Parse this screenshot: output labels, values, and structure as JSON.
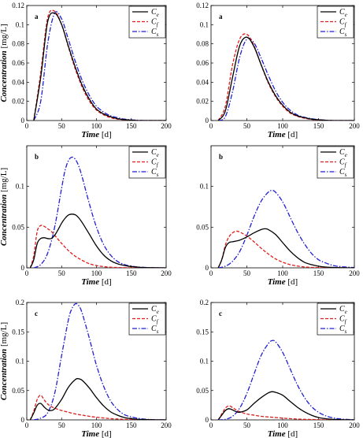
{
  "legend_labels": [
    {
      "main": "C",
      "sub": "e"
    },
    {
      "main": "C",
      "sub": "f"
    },
    {
      "main": "C",
      "sub": "s"
    }
  ],
  "colors": {
    "Ce": "#000000",
    "Cf": "#e01b1b",
    "Cs": "#1f1fd6"
  },
  "chart_data": [
    {
      "type": "line",
      "panel_label": "a",
      "xlabel": {
        "italic": "Time",
        "unit": " [d]"
      },
      "ylabel": {
        "italic": "Concentration",
        "unit": " [mg/L]"
      },
      "xlim": [
        0,
        200
      ],
      "ylim": [
        0,
        0.12
      ],
      "xticks": [
        0,
        50,
        100,
        150,
        200
      ],
      "yticks": [
        0,
        0.02,
        0.04,
        0.06,
        0.08,
        0.1,
        0.12
      ],
      "legend_position": "top-right",
      "series": [
        {
          "name": "Ce",
          "x": [
            10,
            20,
            30,
            40,
            50,
            60,
            70,
            80,
            90,
            100,
            110,
            120,
            130,
            140,
            150,
            160,
            170,
            180,
            190,
            200
          ],
          "y": [
            0,
            0.045,
            0.103,
            0.112,
            0.1,
            0.077,
            0.055,
            0.036,
            0.022,
            0.012,
            0.007,
            0.004,
            0.002,
            0.001,
            0.0005,
            0,
            0,
            0,
            0,
            0
          ]
        },
        {
          "name": "Cf",
          "x": [
            10,
            20,
            30,
            40,
            50,
            60,
            70,
            80,
            90,
            100,
            110,
            120,
            130,
            140,
            150,
            160,
            170,
            180,
            190,
            200
          ],
          "y": [
            0,
            0.05,
            0.107,
            0.114,
            0.1,
            0.076,
            0.053,
            0.034,
            0.02,
            0.011,
            0.006,
            0.003,
            0.0015,
            0.0008,
            0.0003,
            0,
            0,
            0,
            0,
            0
          ]
        },
        {
          "name": "Cs",
          "x": [
            10,
            20,
            30,
            40,
            50,
            60,
            70,
            80,
            90,
            100,
            110,
            120,
            130,
            140,
            150,
            160,
            170,
            180,
            190,
            200
          ],
          "y": [
            0,
            0.02,
            0.08,
            0.112,
            0.106,
            0.084,
            0.061,
            0.041,
            0.026,
            0.015,
            0.009,
            0.005,
            0.003,
            0.0015,
            0.0007,
            0.0003,
            0,
            0,
            0,
            0
          ]
        }
      ]
    },
    {
      "type": "line",
      "panel_label": "a",
      "xlabel": {
        "italic": "Time",
        "unit": " [d]"
      },
      "ylabel": {
        "italic": "",
        "unit": ""
      },
      "xlim": [
        0,
        200
      ],
      "ylim": [
        0,
        0.12
      ],
      "xticks": [
        0,
        50,
        100,
        150,
        200
      ],
      "yticks": [
        0,
        0.02,
        0.04,
        0.06,
        0.08,
        0.1,
        0.12
      ],
      "legend_position": "top-right",
      "series": [
        {
          "name": "Ce",
          "x": [
            10,
            20,
            30,
            40,
            50,
            60,
            70,
            80,
            90,
            100,
            110,
            120,
            130,
            140,
            150,
            160,
            170,
            180,
            190,
            200
          ],
          "y": [
            0,
            0.01,
            0.045,
            0.078,
            0.087,
            0.077,
            0.058,
            0.04,
            0.026,
            0.016,
            0.009,
            0.005,
            0.003,
            0.0015,
            0.0008,
            0.0003,
            0,
            0,
            0,
            0
          ]
        },
        {
          "name": "Cf",
          "x": [
            10,
            20,
            30,
            40,
            50,
            60,
            70,
            80,
            90,
            100,
            110,
            120,
            130,
            140,
            150,
            160,
            170,
            180,
            190,
            200
          ],
          "y": [
            0,
            0.015,
            0.058,
            0.085,
            0.09,
            0.078,
            0.058,
            0.039,
            0.025,
            0.015,
            0.008,
            0.0045,
            0.0025,
            0.0012,
            0.0006,
            0.0002,
            0,
            0,
            0,
            0
          ]
        },
        {
          "name": "Cs",
          "x": [
            10,
            20,
            30,
            40,
            50,
            60,
            70,
            80,
            90,
            100,
            110,
            120,
            130,
            140,
            150,
            160,
            170,
            180,
            190,
            200
          ],
          "y": [
            0,
            0.004,
            0.03,
            0.066,
            0.085,
            0.081,
            0.065,
            0.047,
            0.031,
            0.019,
            0.011,
            0.006,
            0.0035,
            0.002,
            0.001,
            0.0004,
            0,
            0,
            0,
            0
          ]
        }
      ]
    },
    {
      "type": "line",
      "panel_label": "b",
      "xlabel": {
        "italic": "Time",
        "unit": " [d]"
      },
      "ylabel": {
        "italic": "Concentration",
        "unit": " [mg/L]"
      },
      "xlim": [
        0,
        200
      ],
      "ylim": [
        0,
        0.15
      ],
      "xticks": [
        0,
        50,
        100,
        150,
        200
      ],
      "yticks": [
        0,
        0.05,
        0.1
      ],
      "legend_position": "top-right",
      "series": [
        {
          "name": "Ce",
          "x": [
            5,
            10,
            15,
            20,
            25,
            30,
            35,
            40,
            45,
            50,
            55,
            60,
            65,
            70,
            75,
            80,
            90,
            100,
            110,
            120,
            130,
            140,
            150,
            170,
            200
          ],
          "y": [
            0,
            0.01,
            0.03,
            0.036,
            0.037,
            0.036,
            0.036,
            0.04,
            0.047,
            0.055,
            0.061,
            0.065,
            0.066,
            0.065,
            0.061,
            0.055,
            0.041,
            0.027,
            0.016,
            0.009,
            0.005,
            0.003,
            0.0015,
            0.0003,
            0
          ]
        },
        {
          "name": "Cf",
          "x": [
            5,
            10,
            15,
            20,
            25,
            30,
            35,
            40,
            45,
            50,
            60,
            70,
            80,
            90,
            100,
            110,
            120,
            130,
            140,
            150,
            170,
            200
          ],
          "y": [
            0,
            0.015,
            0.045,
            0.052,
            0.051,
            0.048,
            0.045,
            0.04,
            0.035,
            0.03,
            0.021,
            0.014,
            0.009,
            0.005,
            0.0028,
            0.0015,
            0.0008,
            0.0004,
            0.0002,
            0.0001,
            0,
            0
          ]
        },
        {
          "name": "Cs",
          "x": [
            10,
            20,
            30,
            40,
            50,
            55,
            60,
            65,
            70,
            75,
            80,
            90,
            100,
            110,
            120,
            130,
            140,
            150,
            160,
            180,
            200
          ],
          "y": [
            0,
            0.004,
            0.018,
            0.05,
            0.098,
            0.12,
            0.132,
            0.136,
            0.133,
            0.124,
            0.11,
            0.078,
            0.05,
            0.029,
            0.016,
            0.008,
            0.004,
            0.002,
            0.001,
            0.0002,
            0
          ]
        }
      ]
    },
    {
      "type": "line",
      "panel_label": "b",
      "xlabel": {
        "italic": "Time",
        "unit": " [d]"
      },
      "ylabel": {
        "italic": "",
        "unit": ""
      },
      "xlim": [
        0,
        200
      ],
      "ylim": [
        0,
        0.15
      ],
      "xticks": [
        0,
        50,
        100,
        150,
        200
      ],
      "yticks": [
        0,
        0.05,
        0.1
      ],
      "legend_position": "top-right",
      "series": [
        {
          "name": "Ce",
          "x": [
            10,
            15,
            20,
            25,
            30,
            40,
            50,
            60,
            70,
            75,
            80,
            90,
            100,
            110,
            120,
            130,
            140,
            150,
            160,
            180,
            200
          ],
          "y": [
            0,
            0.01,
            0.025,
            0.031,
            0.032,
            0.034,
            0.038,
            0.043,
            0.047,
            0.048,
            0.047,
            0.041,
            0.031,
            0.021,
            0.013,
            0.007,
            0.004,
            0.002,
            0.001,
            0.0002,
            0
          ]
        },
        {
          "name": "Cf",
          "x": [
            10,
            15,
            20,
            25,
            30,
            35,
            40,
            50,
            60,
            70,
            80,
            90,
            100,
            110,
            120,
            130,
            140,
            150,
            160,
            180,
            200
          ],
          "y": [
            0,
            0.01,
            0.028,
            0.038,
            0.043,
            0.045,
            0.044,
            0.039,
            0.032,
            0.024,
            0.017,
            0.011,
            0.007,
            0.004,
            0.0023,
            0.0012,
            0.0006,
            0.0003,
            0.0001,
            0,
            0
          ]
        },
        {
          "name": "Cs",
          "x": [
            10,
            20,
            30,
            40,
            50,
            60,
            70,
            80,
            85,
            90,
            100,
            110,
            120,
            130,
            140,
            150,
            160,
            170,
            180,
            200
          ],
          "y": [
            0,
            0.002,
            0.008,
            0.02,
            0.04,
            0.063,
            0.082,
            0.093,
            0.095,
            0.093,
            0.081,
            0.063,
            0.045,
            0.03,
            0.018,
            0.01,
            0.006,
            0.003,
            0.0015,
            0.0003
          ]
        }
      ]
    },
    {
      "type": "line",
      "panel_label": "c",
      "xlabel": {
        "italic": "Time",
        "unit": " [d]"
      },
      "ylabel": {
        "italic": "Concentration",
        "unit": " [mg/L]"
      },
      "xlim": [
        0,
        200
      ],
      "ylim": [
        0,
        0.2
      ],
      "xticks": [
        0,
        50,
        100,
        150,
        200
      ],
      "yticks": [
        0,
        0.05,
        0.1,
        0.15,
        0.2
      ],
      "legend_position": "top-right",
      "series": [
        {
          "name": "Ce",
          "x": [
            5,
            10,
            15,
            20,
            25,
            30,
            35,
            40,
            50,
            60,
            70,
            75,
            80,
            90,
            100,
            110,
            120,
            130,
            140,
            150,
            160,
            180,
            200
          ],
          "y": [
            0,
            0.012,
            0.025,
            0.028,
            0.022,
            0.017,
            0.016,
            0.019,
            0.035,
            0.056,
            0.069,
            0.07,
            0.067,
            0.054,
            0.038,
            0.024,
            0.014,
            0.008,
            0.004,
            0.002,
            0.001,
            0.0002,
            0
          ]
        },
        {
          "name": "Cf",
          "x": [
            5,
            10,
            15,
            20,
            25,
            30,
            35,
            40,
            50,
            60,
            70,
            80,
            90,
            100,
            110,
            120,
            130,
            140,
            150,
            170,
            200
          ],
          "y": [
            0,
            0.015,
            0.035,
            0.042,
            0.034,
            0.027,
            0.023,
            0.02,
            0.016,
            0.013,
            0.01,
            0.008,
            0.006,
            0.0045,
            0.0032,
            0.0022,
            0.0015,
            0.001,
            0.0006,
            0.0002,
            0
          ]
        },
        {
          "name": "Cs",
          "x": [
            10,
            20,
            30,
            40,
            50,
            60,
            65,
            70,
            75,
            80,
            90,
            100,
            110,
            120,
            130,
            140,
            150,
            160,
            170,
            180,
            200
          ],
          "y": [
            0,
            0.003,
            0.012,
            0.045,
            0.11,
            0.172,
            0.19,
            0.198,
            0.194,
            0.18,
            0.138,
            0.093,
            0.058,
            0.033,
            0.018,
            0.009,
            0.005,
            0.0025,
            0.0012,
            0.0005,
            0
          ]
        }
      ]
    },
    {
      "type": "line",
      "panel_label": "c",
      "xlabel": {
        "italic": "Time",
        "unit": " [d]"
      },
      "ylabel": {
        "italic": "",
        "unit": ""
      },
      "xlim": [
        0,
        200
      ],
      "ylim": [
        0,
        0.2
      ],
      "xticks": [
        0,
        50,
        100,
        150,
        200
      ],
      "yticks": [
        0,
        0.05,
        0.1,
        0.15,
        0.2
      ],
      "legend_position": "top-right",
      "series": [
        {
          "name": "Ce",
          "x": [
            10,
            15,
            20,
            25,
            30,
            35,
            40,
            50,
            60,
            70,
            80,
            85,
            90,
            100,
            110,
            120,
            130,
            140,
            150,
            160,
            170,
            180,
            200
          ],
          "y": [
            0,
            0.008,
            0.016,
            0.019,
            0.017,
            0.014,
            0.013,
            0.017,
            0.028,
            0.038,
            0.046,
            0.048,
            0.047,
            0.042,
            0.032,
            0.022,
            0.014,
            0.008,
            0.004,
            0.002,
            0.001,
            0.0005,
            0
          ]
        },
        {
          "name": "Cf",
          "x": [
            10,
            15,
            20,
            25,
            30,
            35,
            40,
            50,
            60,
            70,
            80,
            90,
            100,
            110,
            120,
            130,
            140,
            150,
            170,
            200
          ],
          "y": [
            0,
            0.01,
            0.02,
            0.024,
            0.021,
            0.017,
            0.014,
            0.01,
            0.008,
            0.006,
            0.005,
            0.004,
            0.003,
            0.0022,
            0.0015,
            0.001,
            0.0007,
            0.0004,
            0.0001,
            0
          ]
        },
        {
          "name": "Cs",
          "x": [
            10,
            20,
            30,
            40,
            50,
            60,
            70,
            80,
            85,
            90,
            100,
            110,
            120,
            130,
            140,
            150,
            160,
            170,
            180,
            190,
            200
          ],
          "y": [
            0,
            0.001,
            0.006,
            0.02,
            0.045,
            0.078,
            0.11,
            0.13,
            0.135,
            0.133,
            0.115,
            0.088,
            0.061,
            0.039,
            0.023,
            0.013,
            0.007,
            0.0035,
            0.0017,
            0.0008,
            0.0003
          ]
        }
      ]
    }
  ]
}
